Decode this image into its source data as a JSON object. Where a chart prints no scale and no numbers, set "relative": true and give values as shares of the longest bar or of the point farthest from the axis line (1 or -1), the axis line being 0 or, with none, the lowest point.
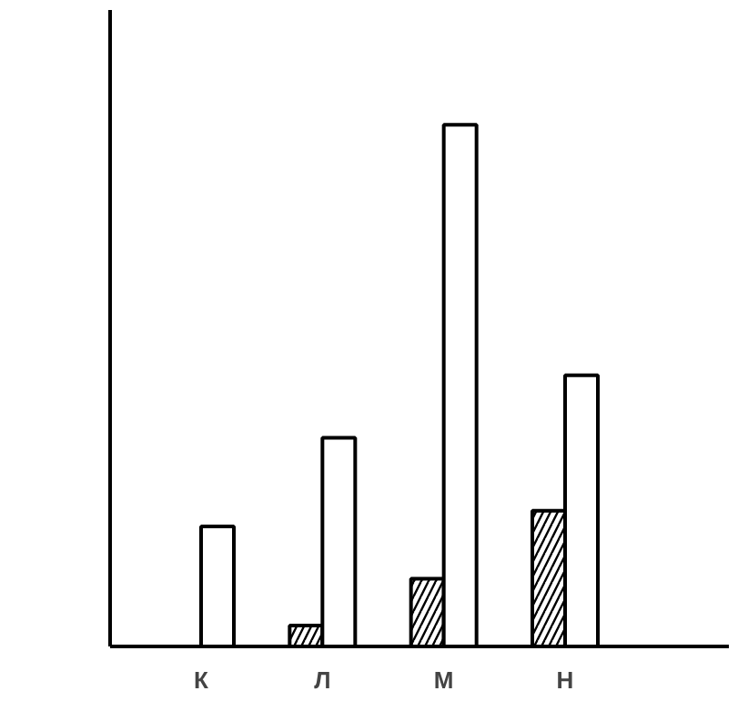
{
  "chart_data": {
    "type": "bar",
    "relative": true,
    "categories": [
      "К",
      "Л",
      "М",
      "Н"
    ],
    "series": [
      {
        "color": "#ffffff",
        "values": [
          null,
          0.04,
          0.13,
          0.26
        ]
      },
      {
        "color": "#ffffff",
        "values": [
          0.23,
          0.4,
          1,
          0.52
        ]
      }
    ]
  }
}
